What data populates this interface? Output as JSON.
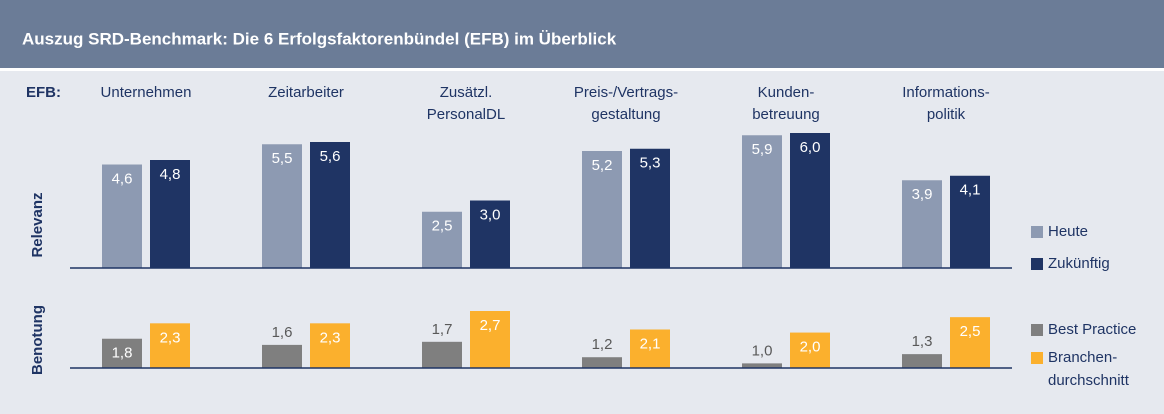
{
  "header": {
    "title": "Auszug SRD-Benchmark: Die 6 Erfolgsfaktorenbündel (EFB) im Überblick"
  },
  "category_label": "EFB:",
  "chart_data": [
    {
      "type": "bar",
      "ylabel": "Relevanz",
      "categories": [
        [
          "Unternehmen"
        ],
        [
          "Zeitarbeiter"
        ],
        [
          "Zusätzl.",
          "PersonalDL"
        ],
        [
          "Preis-/Vertrags-",
          "gestaltung"
        ],
        [
          "Kunden-",
          "betreuung"
        ],
        [
          "Informations-",
          "politik"
        ]
      ],
      "ylim": [
        0,
        6
      ],
      "series": [
        {
          "name": [
            "Heute"
          ],
          "color": "#8d9ab2",
          "values": [
            4.6,
            5.5,
            2.5,
            5.2,
            5.9,
            3.9
          ],
          "value_labels": [
            "4,6",
            "5,5",
            "2,5",
            "5,2",
            "5,9",
            "3,9"
          ]
        },
        {
          "name": [
            "Zukünftig"
          ],
          "color": "#1f3464",
          "values": [
            4.8,
            5.6,
            3.0,
            5.3,
            6.0,
            4.1
          ],
          "value_labels": [
            "4,8",
            "5,6",
            "3,0",
            "5,3",
            "6,0",
            "4,1"
          ]
        }
      ]
    },
    {
      "type": "bar",
      "ylabel": "Benotung",
      "ylim": [
        0.85,
        2.7
      ],
      "series": [
        {
          "name": [
            "Best Practice"
          ],
          "color": "#7f7f7f",
          "values": [
            1.8,
            1.6,
            1.7,
            1.2,
            1.0,
            1.3
          ],
          "value_labels": [
            "1,8",
            "1,6",
            "1,7",
            "1,2",
            "1,0",
            "1,3"
          ]
        },
        {
          "name": [
            "Branchen-",
            "durchschnitt"
          ],
          "color": "#fbb02d",
          "values": [
            2.3,
            2.3,
            2.7,
            2.1,
            2.0,
            2.5
          ],
          "value_labels": [
            "2,3",
            "2,3",
            "2,7",
            "2,1",
            "2,0",
            "2,5"
          ]
        }
      ]
    }
  ]
}
